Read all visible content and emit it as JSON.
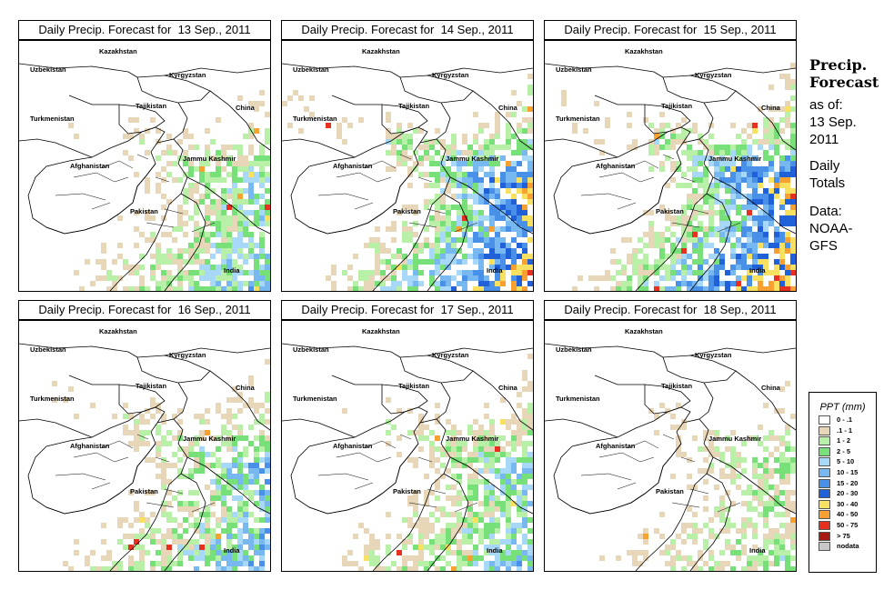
{
  "panels": [
    {
      "title": "Daily Precip. Forecast for  13 Sep., 2011",
      "intensity": 0.45,
      "shift": 0
    },
    {
      "title": "Daily Precip. Forecast for  14 Sep., 2011",
      "intensity": 0.75,
      "shift": 1
    },
    {
      "title": "Daily Precip. Forecast for  15 Sep., 2011",
      "intensity": 0.8,
      "shift": 2
    },
    {
      "title": "Daily Precip. Forecast for  16 Sep., 2011",
      "intensity": 0.5,
      "shift": 3
    },
    {
      "title": "Daily Precip. Forecast for  17 Sep., 2011",
      "intensity": 0.45,
      "shift": 4
    },
    {
      "title": "Daily Precip. Forecast for  18 Sep., 2011",
      "intensity": 0.3,
      "shift": 5
    }
  ],
  "map_labels": {
    "kazakhstan": "Kazakhstan",
    "uzbekistan": "Uzbekistan",
    "kyrgyzstan": "Kyrgyzstan",
    "tajikistan": "Tajikistan",
    "china": "China",
    "turkmenistan": "Turkmenistan",
    "afghanistan": "Afghanistan",
    "jammu_kashmir": "Jammu Kashmir",
    "pakistan": "Pakistan",
    "india": "India"
  },
  "sidebar": {
    "title_line1": "Precip.",
    "title_line2": "Forecast",
    "asof_line1": "as of:",
    "asof_line2": "13 Sep.",
    "asof_line3": "2011",
    "daily_line1": "Daily",
    "daily_line2": "Totals",
    "data_line1": "Data:",
    "data_line2": "NOAA-",
    "data_line3": "GFS"
  },
  "legend": {
    "title": "PPT (mm)",
    "entries": [
      {
        "label": "0 - .1",
        "color": "#ffffff"
      },
      {
        "label": ".1 - 1",
        "color": "#e8d6b8"
      },
      {
        "label": "1 - 2",
        "color": "#b8f0a8"
      },
      {
        "label": "2 - 5",
        "color": "#78e078"
      },
      {
        "label": "5 - 10",
        "color": "#a8d8f8"
      },
      {
        "label": "10 - 15",
        "color": "#78b8f0"
      },
      {
        "label": "15 - 20",
        "color": "#4890e8"
      },
      {
        "label": "20 - 30",
        "color": "#2060d8"
      },
      {
        "label": "30 - 40",
        "color": "#f8e060"
      },
      {
        "label": "40 - 50",
        "color": "#f8a030"
      },
      {
        "label": "50 - 75",
        "color": "#e83020"
      },
      {
        "label": "> 75",
        "color": "#a81810"
      },
      {
        "label": "nodata",
        "color": "#c8c8c8"
      }
    ]
  }
}
